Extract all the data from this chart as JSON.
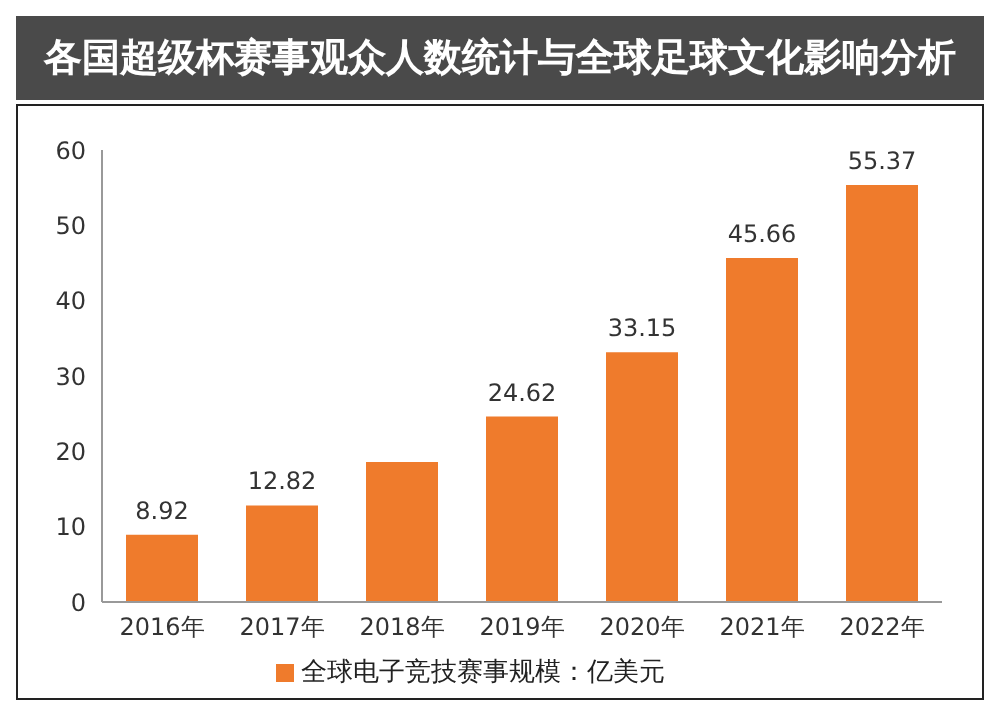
{
  "chart_data": {
    "type": "bar",
    "title": "各国超级杯赛事观众人数统计与全球足球文化影响分析",
    "categories": [
      "2016年",
      "2017年",
      "2018年",
      "2019年",
      "2020年",
      "2021年",
      "2022年"
    ],
    "series": [
      {
        "name": "全球电子竞技赛事规模：亿美元",
        "color": "#ef7b2c",
        "values": [
          8.92,
          12.82,
          18.6,
          24.62,
          33.15,
          45.66,
          55.37
        ],
        "value_labels": [
          "8.92",
          "12.82",
          null,
          "24.62",
          "33.15",
          "45.66",
          "55.37"
        ]
      }
    ],
    "ylim": [
      0,
      60
    ],
    "yticks": [
      0,
      10,
      20,
      30,
      40,
      50,
      60
    ],
    "grid": false,
    "legend": "bottom"
  }
}
